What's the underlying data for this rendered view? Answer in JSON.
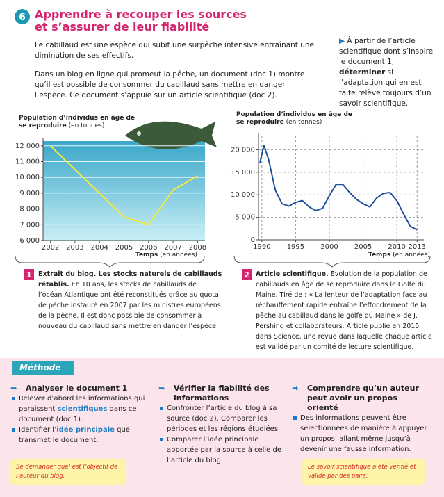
{
  "header": {
    "number": "6",
    "title": "Apprendre à recouper les sources",
    "title2": "et s’assurer de leur fiabilité"
  },
  "intro": {
    "p1": "Le cabillaud est une espèce qui subit une surpêche intensive entraînant une diminution de ses effectifs.",
    "p2": "Dans un blog en ligne qui promeut la pêche, un document (doc 1) montre qu’il est possible de consommer du cabillaud sans mettre en danger l’espèce. Ce document s’appuie sur un article scientifique (doc 2)."
  },
  "task": {
    "before": "À partir de l’article scientifique dont s’inspire le document 1, ",
    "bold": "déterminer",
    "after": " si l’adaptation qui en est faite relève toujours d’un savoir scientifique."
  },
  "chart_data": [
    {
      "type": "line",
      "y_label": "Population d’individus en âge de se reproduire",
      "y_unit": "(en tonnes)",
      "x_label": "Temps",
      "x_unit": "(en années)",
      "color": "#f3ea3a",
      "grid": true,
      "x": [
        2002,
        2003,
        2004,
        2005,
        2006,
        2007,
        2008
      ],
      "values": [
        12000,
        10500,
        9000,
        7500,
        7000,
        9200,
        10100
      ],
      "xlim": [
        2001.7,
        2008.3
      ],
      "xticks": [
        2002,
        2003,
        2004,
        2005,
        2006,
        2007,
        2008
      ],
      "ylim": [
        6000,
        12300
      ],
      "yticks": [
        {
          "value": 6000,
          "label": "6 000"
        },
        {
          "value": 7000,
          "label": "7 000"
        },
        {
          "value": 8000,
          "label": "8 000"
        },
        {
          "value": 9000,
          "label": "9 000"
        },
        {
          "value": 10000,
          "label": "10 000"
        },
        {
          "value": 11000,
          "label": "11 000"
        },
        {
          "value": 12000,
          "label": "12 000"
        }
      ]
    },
    {
      "type": "line",
      "y_label": "Population d’individus en âge de se reproduire",
      "y_unit": "(en tonnes)",
      "x_label": "Temps",
      "x_unit": "(en années)",
      "color": "#1e4f9c",
      "grid": true,
      "x": [
        1989.7,
        1990.3,
        1991,
        1992,
        1993,
        1994,
        1995,
        1996,
        1997,
        1998,
        1999,
        2000,
        2001,
        2002,
        2003,
        2004,
        2005,
        2006,
        2007,
        2008,
        2009,
        2010,
        2011,
        2012,
        2013
      ],
      "values": [
        17000,
        21000,
        17800,
        11000,
        8000,
        7500,
        8300,
        8700,
        7300,
        6500,
        7000,
        9800,
        12300,
        12300,
        10500,
        9000,
        8000,
        7300,
        9300,
        10300,
        10500,
        8700,
        5700,
        3000,
        2200
      ],
      "xlim": [
        1989.5,
        2014
      ],
      "xticks": [
        1990,
        1995,
        2000,
        2005,
        2010,
        2013
      ],
      "ylim": [
        0,
        23000
      ],
      "yticks": [
        0,
        {
          "value": 5000,
          "label": "5 000"
        },
        {
          "value": 10000,
          "label": "10 000"
        },
        {
          "value": 15000,
          "label": "15 000"
        },
        {
          "value": 20000,
          "label": "20 000"
        }
      ]
    }
  ],
  "captions": [
    {
      "number": "1",
      "bold": "Extrait du blog. Les stocks naturels de cabillauds rétablis.",
      "text": " En 10 ans, les stocks de cabillauds de l’océan Atlantique ont été reconstitués grâce au quota de pêche instauré en 2007 par les ministres européens de la pêche. Il est donc possible de consommer à nouveau du cabillaud sans mettre en danger l’espèce."
    },
    {
      "number": "2",
      "bold": "Article scientifique.",
      "text": " Évolution de la population de cabillauds en âge de se reproduire dans le Golfe du Maine. Tiré de : « La lenteur de l’adaptation face au réchauffement rapide entraîne l’effondrement de la pêche au cabillaud dans le golfe du Maine » de J. Pershing et collaborateurs. Article publié en 2015 dans Science, une revue dans laquelle chaque article est validé par un comité de lecture scientifique."
    }
  ],
  "methode": {
    "title": "Méthode",
    "col1": {
      "heading": "Analyser le document 1",
      "b1a": "Relever d’abord les informations qui paraissent ",
      "b1b": "scientifiques",
      "b1c": " dans ce document (doc 1).",
      "b2a": "Identifier l’",
      "b2b": "idée principale",
      "b2c": " que transmet le document.",
      "tip": "Se demander quel est l’objectif de l’auteur du blog."
    },
    "col2": {
      "heading": "Vérifier la fiabilité des informations",
      "b1": "Confronter l’article du blog à sa source (doc 2). Comparer les périodes et les régions étudiées.",
      "b2": "Comparer l’idée principale apportée par la source à celle de l’article du blog."
    },
    "col3": {
      "heading": "Comprendre qu’un auteur peut avoir un propos orienté",
      "b1": "Des informations peuvent être sélectionnées de manière à appuyer un propos, allant même jusqu’à devenir une fausse information.",
      "tip": "Le savoir scientifique a été vérifié et validé par des pairs."
    }
  }
}
